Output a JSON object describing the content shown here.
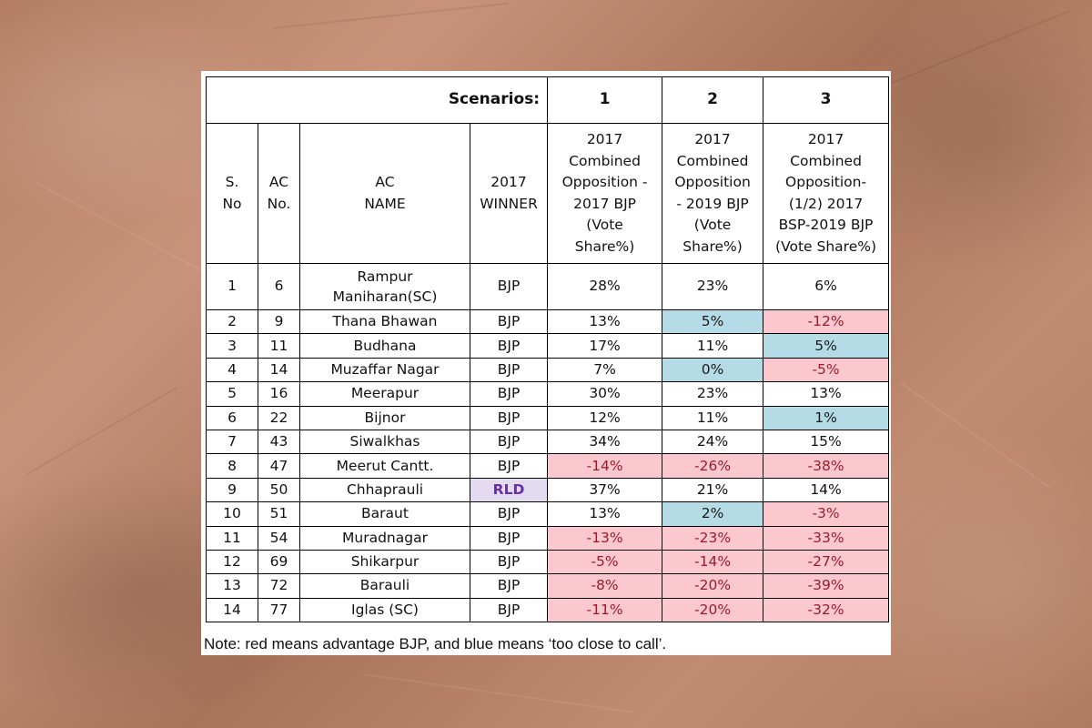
{
  "scenarios_label": "Scenarios:",
  "scenarios": [
    "1",
    "2",
    "3"
  ],
  "headers": {
    "sno": [
      "S.",
      "No"
    ],
    "acno": [
      "AC",
      "No."
    ],
    "acname": [
      "AC",
      "NAME"
    ],
    "winner": [
      "2017",
      "WINNER"
    ],
    "s1": [
      "2017",
      "Combined",
      "Opposition -",
      "2017 BJP",
      "(Vote",
      "Share%)"
    ],
    "s2": [
      "2017",
      "Combined",
      "Opposition",
      "- 2019 BJP",
      "(Vote",
      "Share%)"
    ],
    "s3": [
      "2017",
      "Combined",
      "Opposition-",
      "(1/2) 2017",
      "BSP-2019 BJP",
      "(Vote Share%)"
    ]
  },
  "first_row": {
    "sno": "1",
    "acno": "6",
    "name_lines": [
      "Rampur",
      "Maniharan(SC)"
    ],
    "winner": "BJP",
    "s1": "28%",
    "s2": "23%",
    "s3": "6%"
  },
  "rows": [
    {
      "sno": "2",
      "acno": "9",
      "name": "Thana Bhawan",
      "winner": "BJP",
      "s1": "13%",
      "s2": "5%",
      "s3": "-12%"
    },
    {
      "sno": "3",
      "acno": "11",
      "name": "Budhana",
      "winner": "BJP",
      "s1": "17%",
      "s2": "11%",
      "s3": "5%"
    },
    {
      "sno": "4",
      "acno": "14",
      "name": "Muzaffar Nagar",
      "winner": "BJP",
      "s1": "7%",
      "s2": "0%",
      "s3": "-5%"
    },
    {
      "sno": "5",
      "acno": "16",
      "name": "Meerapur",
      "winner": "BJP",
      "s1": "30%",
      "s2": "23%",
      "s3": "13%"
    },
    {
      "sno": "6",
      "acno": "22",
      "name": "Bijnor",
      "winner": "BJP",
      "s1": "12%",
      "s2": "11%",
      "s3": "1%"
    },
    {
      "sno": "7",
      "acno": "43",
      "name": "Siwalkhas",
      "winner": "BJP",
      "s1": "34%",
      "s2": "24%",
      "s3": "15%"
    },
    {
      "sno": "8",
      "acno": "47",
      "name": "Meerut Cantt.",
      "winner": "BJP",
      "s1": "-14%",
      "s2": "-26%",
      "s3": "-38%"
    },
    {
      "sno": "9",
      "acno": "50",
      "name": "Chhaprauli",
      "winner": "RLD",
      "s1": "37%",
      "s2": "21%",
      "s3": "14%"
    },
    {
      "sno": "10",
      "acno": "51",
      "name": "Baraut",
      "winner": "BJP",
      "s1": "13%",
      "s2": "2%",
      "s3": "-3%"
    },
    {
      "sno": "11",
      "acno": "54",
      "name": "Muradnagar",
      "winner": "BJP",
      "s1": "-13%",
      "s2": "-23%",
      "s3": "-33%"
    },
    {
      "sno": "12",
      "acno": "69",
      "name": "Shikarpur",
      "winner": "BJP",
      "s1": "-5%",
      "s2": "-14%",
      "s3": "-27%"
    },
    {
      "sno": "13",
      "acno": "72",
      "name": "Barauli",
      "winner": "BJP",
      "s1": "-8%",
      "s2": "-20%",
      "s3": "-39%"
    },
    {
      "sno": "14",
      "acno": "77",
      "name": "Iglas (SC)",
      "winner": "BJP",
      "s1": "-11%",
      "s2": "-20%",
      "s3": "-32%"
    }
  ],
  "note": "Note: red means advantage BJP, and blue means ‘too close to call’.",
  "colors": {
    "red_fill": "#fcc8d0",
    "blue_fill": "#b5dbe6",
    "rld_fill": "#e3dcf0",
    "rld_text": "#6a2fa0"
  }
}
